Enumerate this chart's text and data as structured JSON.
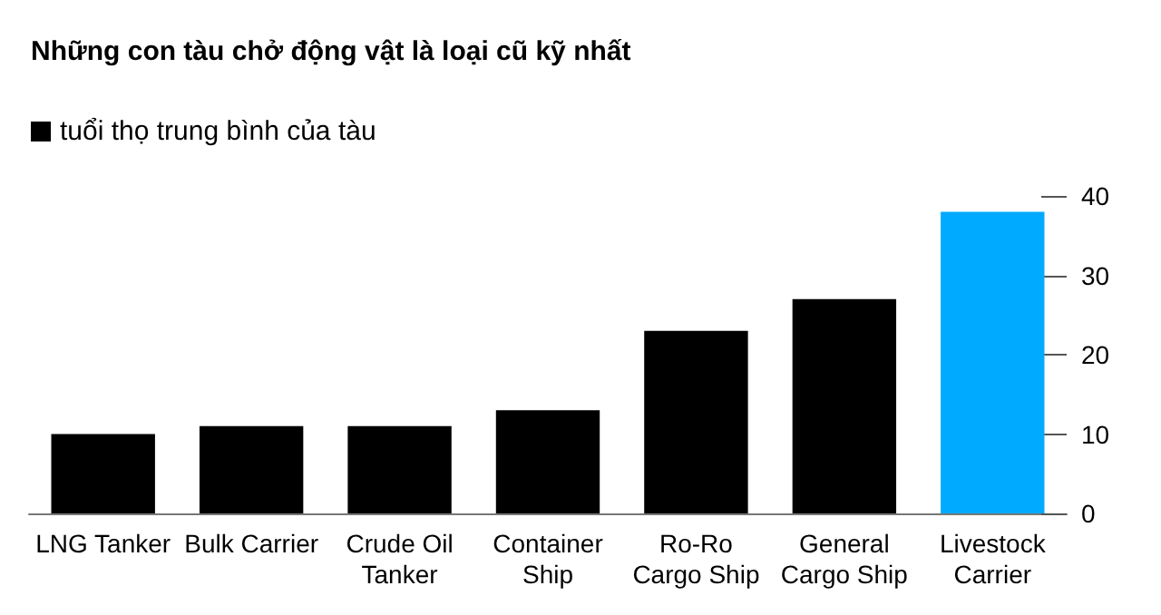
{
  "chart_data": {
    "type": "bar",
    "title": "Những con tàu chở động vật là loại cũ kỹ nhất",
    "categories": [
      "LNG Tanker",
      "Bulk Carrier",
      "Crude Oil\nTanker",
      "Container\nShip",
      "Ro-Ro\nCargo Ship",
      "General\nCargo Ship",
      "Livestock\nCarrier"
    ],
    "series": [
      {
        "name": "tuổi thọ trung bình của tàu",
        "color": "#000000",
        "colors": [
          "#000000",
          "#000000",
          "#000000",
          "#000000",
          "#000000",
          "#000000",
          "#00aaff"
        ],
        "values": [
          10,
          11,
          11,
          13,
          23,
          27,
          38
        ]
      }
    ],
    "ylim": [
      0,
      40
    ],
    "yticks": [
      0,
      10,
      20,
      30,
      40
    ],
    "grid": false,
    "legend": "top left"
  }
}
